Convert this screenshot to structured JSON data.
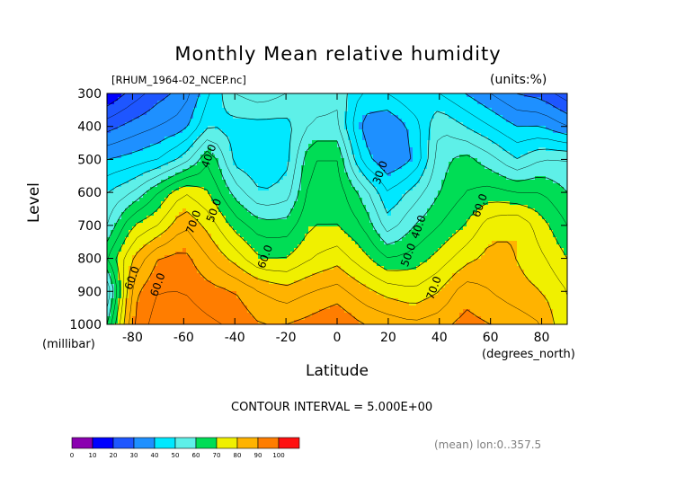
{
  "chart_data": {
    "type": "heatmap",
    "subtype": "filled-contour",
    "title": "Monthly Mean relative humidity",
    "file_label": "[RHUM_1964-02_NCEP.nc]",
    "units_label": "(units:%)",
    "xlabel": "Latitude",
    "x_unit_label": "(degrees_north)",
    "ylabel": "Level",
    "y_unit_label": "(millibar)",
    "xlim": [
      -90,
      90
    ],
    "ylim": [
      1000,
      300
    ],
    "x_ticks": [
      -80,
      -60,
      -40,
      -20,
      0,
      20,
      40,
      60,
      80
    ],
    "x_tick_labels": [
      "-80",
      "-60",
      "-40",
      "-20",
      "0",
      "20",
      "40",
      "60",
      "80"
    ],
    "y_ticks": [
      300,
      400,
      500,
      600,
      700,
      800,
      900,
      1000
    ],
    "y_tick_labels": [
      "300",
      "400",
      "500",
      "600",
      "700",
      "800",
      "900",
      "1000"
    ],
    "x": [
      -90,
      -80,
      -70,
      -60,
      -50,
      -40,
      -30,
      -20,
      -10,
      0,
      10,
      20,
      30,
      40,
      50,
      60,
      70,
      80,
      90
    ],
    "y": [
      300,
      400,
      500,
      600,
      700,
      800,
      900,
      1000
    ],
    "z": [
      [
        5,
        12,
        18,
        22,
        35,
        45,
        48,
        45,
        42,
        44,
        34,
        35,
        40,
        35,
        30,
        25,
        20,
        18,
        12
      ],
      [
        18,
        22,
        25,
        28,
        40,
        38,
        38,
        38,
        46,
        46,
        28,
        25,
        32,
        45,
        40,
        35,
        30,
        30,
        25
      ],
      [
        30,
        32,
        35,
        42,
        55,
        38,
        35,
        38,
        55,
        55,
        33,
        25,
        30,
        48,
        52,
        47,
        40,
        45,
        45
      ],
      [
        40,
        45,
        55,
        65,
        60,
        48,
        40,
        42,
        58,
        58,
        48,
        35,
        42,
        50,
        55,
        57,
        55,
        55,
        50
      ],
      [
        45,
        60,
        65,
        75,
        68,
        58,
        52,
        52,
        60,
        60,
        55,
        42,
        50,
        55,
        60,
        68,
        70,
        62,
        55
      ],
      [
        55,
        70,
        80,
        82,
        75,
        68,
        60,
        60,
        65,
        68,
        62,
        55,
        57,
        62,
        68,
        72,
        70,
        66,
        60
      ],
      [
        40,
        78,
        85,
        85,
        82,
        80,
        75,
        72,
        75,
        77,
        72,
        68,
        66,
        70,
        78,
        75,
        72,
        70,
        65
      ],
      [
        50,
        80,
        88,
        88,
        86,
        84,
        80,
        80,
        82,
        85,
        80,
        78,
        76,
        78,
        82,
        80,
        78,
        75,
        65
      ]
    ],
    "contour_levels": [
      0,
      10,
      20,
      30,
      40,
      50,
      60,
      70,
      80,
      90,
      100
    ],
    "contour_interval_label": "CONTOUR INTERVAL = 5.000E+00",
    "colorbar": {
      "labels": [
        "0",
        "10",
        "20",
        "30",
        "40",
        "50",
        "60",
        "70",
        "80",
        "90",
        "100"
      ],
      "colors": [
        "#8a00b0",
        "#0000ff",
        "#1e56ff",
        "#1e90ff",
        "#00e8ff",
        "#5ef0e8",
        "#00dd55",
        "#f0f000",
        "#ffb300",
        "#ff7d00",
        "#ff1010"
      ]
    },
    "contour_labels": [
      {
        "text": "40.0",
        "x": -50,
        "y": 490
      },
      {
        "text": "50.0",
        "x": -48,
        "y": 655
      },
      {
        "text": "70.0",
        "x": -56,
        "y": 690
      },
      {
        "text": "60.0",
        "x": -28,
        "y": 795
      },
      {
        "text": "60.0",
        "x": -80,
        "y": 860
      },
      {
        "text": "60.0",
        "x": -70,
        "y": 880
      },
      {
        "text": "30.0",
        "x": 17,
        "y": 540
      },
      {
        "text": "40.0",
        "x": 32,
        "y": 705
      },
      {
        "text": "50.0",
        "x": 28,
        "y": 790
      },
      {
        "text": "60.0",
        "x": 56,
        "y": 640
      },
      {
        "text": "70.0",
        "x": 38,
        "y": 890
      }
    ],
    "mean_info": "(mean) lon:0..357.5"
  }
}
